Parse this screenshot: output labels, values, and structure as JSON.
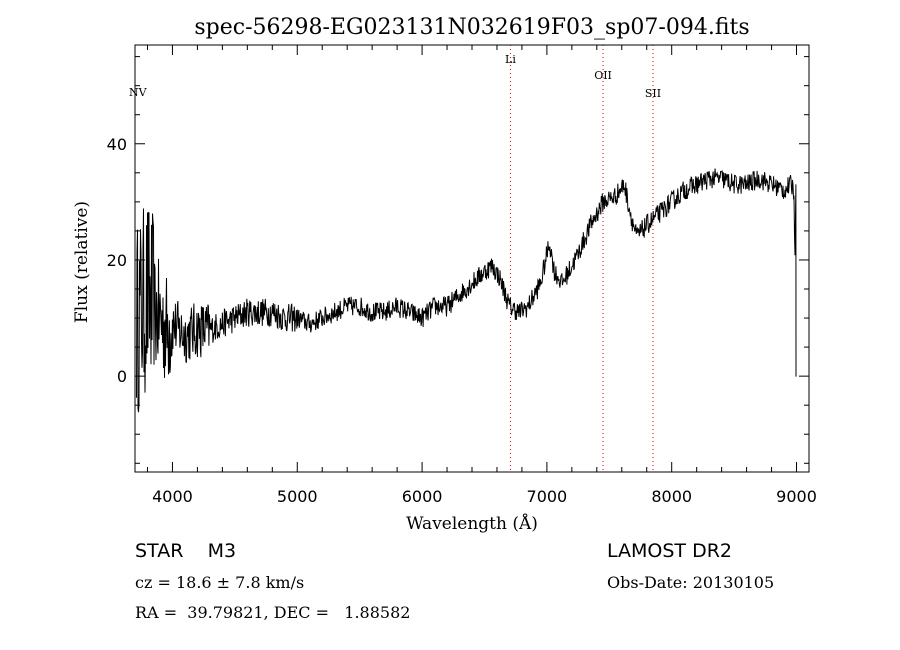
{
  "chart_data": {
    "type": "line",
    "title": "spec-56298-EG023131N032619F03_sp07-094.fits",
    "xlabel": "Wavelength (Å)",
    "ylabel": "Flux (relative)",
    "xlim": [
      3700,
      9100
    ],
    "ylim": [
      -16.5,
      57
    ],
    "x_ticks": [
      4000,
      5000,
      6000,
      7000,
      8000,
      9000
    ],
    "x_tick_labels": [
      "4000",
      "5000",
      "6000",
      "7000",
      "8000",
      "9000"
    ],
    "y_ticks": [
      0,
      20,
      40
    ],
    "y_tick_labels": [
      "0",
      "20",
      "40"
    ],
    "grid": false,
    "line_color": "#000000",
    "marker_color": "#cc0000",
    "series": [
      {
        "x": [
          3720,
          3760,
          3800,
          3850,
          3900,
          3950,
          4000,
          4100,
          4200,
          4300,
          4400,
          4500,
          4600,
          4700,
          4800,
          4900,
          5000,
          5100,
          5200,
          5300,
          5400,
          5500,
          5600,
          5700,
          5800,
          5900,
          6000,
          6100,
          6200,
          6300,
          6400,
          6500,
          6560,
          6620,
          6700,
          6780,
          6850,
          6950,
          7020,
          7060,
          7120,
          7200,
          7250,
          7350,
          7450,
          7550,
          7620,
          7680,
          7720,
          7800,
          7900,
          8000,
          8100,
          8200,
          8300,
          8400,
          8500,
          8600,
          8700,
          8800,
          8900,
          8960,
          8980,
          9000
        ],
        "y": [
          10,
          12,
          14,
          11,
          10,
          8,
          9,
          7,
          8,
          8,
          9,
          10,
          11,
          11,
          11,
          10,
          10,
          9,
          10,
          11,
          12,
          12,
          11,
          11,
          12,
          11,
          10,
          12,
          12,
          14,
          16,
          18,
          19,
          17,
          12,
          11,
          12,
          16,
          23,
          18,
          16,
          19,
          21,
          26,
          30,
          31,
          33,
          27,
          24,
          26,
          28,
          30,
          32,
          33,
          34,
          34,
          33,
          33,
          34,
          33,
          32,
          33,
          32,
          0
        ]
      }
    ],
    "markers": [
      {
        "label": "NV",
        "x": 3700
      },
      {
        "label": "Li",
        "x": 6708
      },
      {
        "label": "OII",
        "x": 7450
      },
      {
        "label": "SII",
        "x": 7850
      }
    ]
  },
  "info": {
    "class": "STAR",
    "subclass": "M3",
    "survey": "LAMOST DR2",
    "cz": "cz = 18.6 ± 7.8 km/s",
    "obs_date": "Obs-Date: 20130105",
    "coords": "RA =  39.79821, DEC =   1.88582"
  }
}
